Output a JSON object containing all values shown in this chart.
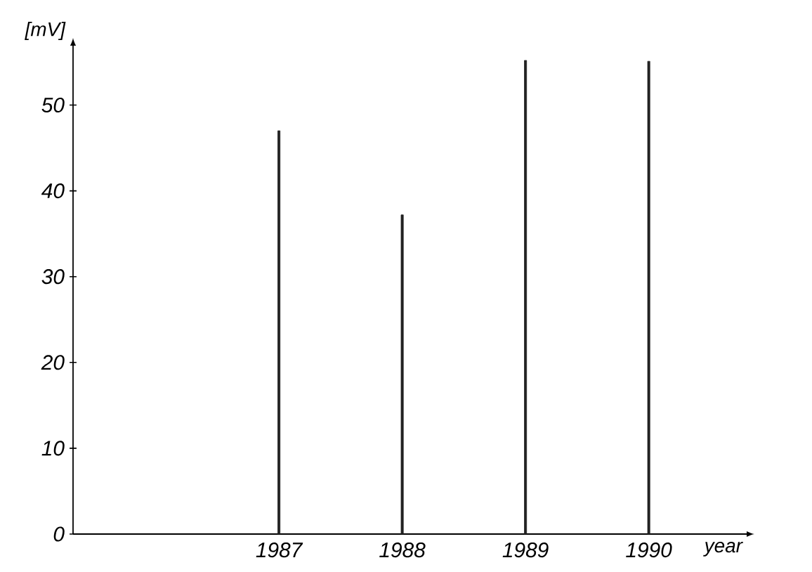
{
  "chart_data": {
    "type": "bar",
    "ylabel": "[mV]",
    "xlabel": "year",
    "x": [
      1987,
      1988,
      1989,
      1990
    ],
    "values": [
      47,
      37.2,
      55.2,
      55.1
    ],
    "color": "#222222",
    "xlim": [
      1985.33,
      1990.8
    ],
    "xticks": [
      1987,
      1988,
      1989,
      1990
    ],
    "ylim": [
      0,
      57
    ],
    "yticks": [
      0,
      10,
      20,
      30,
      40,
      50
    ],
    "grid": false
  }
}
